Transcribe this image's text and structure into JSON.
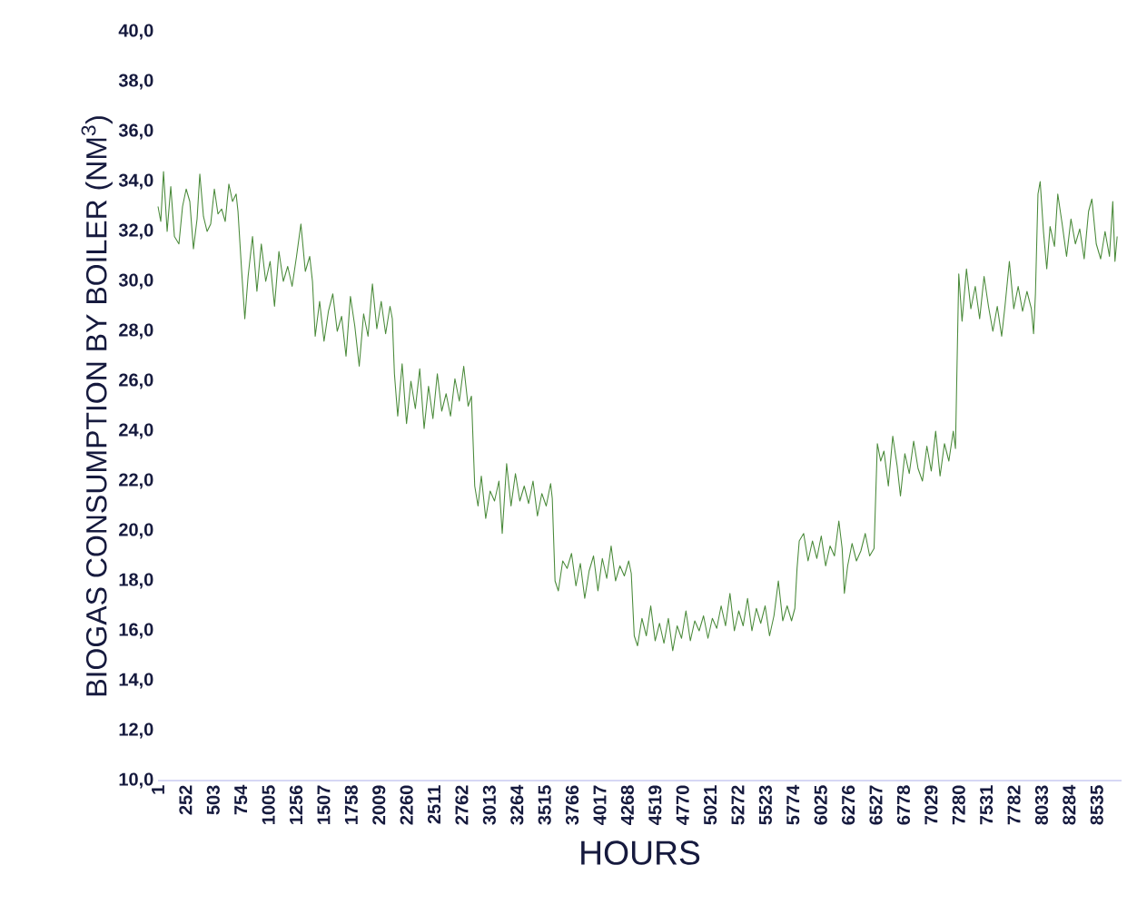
{
  "chart_data": {
    "type": "line",
    "xlabel": "HOURS",
    "ylabel": "BIOGAS CONSUMPTION BY BOILER (NM$^{3}$)",
    "xlim": [
      1,
      8760
    ],
    "ylim": [
      10,
      40
    ],
    "xticks": [
      1,
      252,
      503,
      754,
      1005,
      1256,
      1507,
      1758,
      2009,
      2260,
      2511,
      2762,
      3013,
      3264,
      3515,
      3766,
      4017,
      4268,
      4519,
      4770,
      5021,
      5272,
      5523,
      5774,
      6025,
      6276,
      6527,
      6778,
      7029,
      7280,
      7531,
      7782,
      8033,
      8284,
      8535
    ],
    "yticks": [
      {
        "value": 10,
        "label": "10,0"
      },
      {
        "value": 12,
        "label": "12,0"
      },
      {
        "value": 14,
        "label": "14,0"
      },
      {
        "value": 16,
        "label": "16,0"
      },
      {
        "value": 18,
        "label": "18,0"
      },
      {
        "value": 20,
        "label": "20,0"
      },
      {
        "value": 22,
        "label": "22,0"
      },
      {
        "value": 24,
        "label": "24,0"
      },
      {
        "value": 26,
        "label": "26,0"
      },
      {
        "value": 28,
        "label": "28,0"
      },
      {
        "value": 30,
        "label": "30,0"
      },
      {
        "value": 32,
        "label": "32,0"
      },
      {
        "value": 34,
        "label": "34,0"
      },
      {
        "value": 36,
        "label": "36,0"
      },
      {
        "value": 38,
        "label": "38,0"
      },
      {
        "value": 40,
        "label": "40,0"
      }
    ],
    "series": [
      {
        "color": "#4a8a3a",
        "x": [
          1,
          26,
          51,
          84,
          117,
          150,
          191,
          224,
          257,
          290,
          323,
          356,
          381,
          414,
          447,
          480,
          513,
          546,
          579,
          612,
          645,
          678,
          711,
          728,
          760,
          790,
          820,
          860,
          900,
          940,
          980,
          1020,
          1060,
          1100,
          1140,
          1180,
          1220,
          1260,
          1300,
          1340,
          1380,
          1405,
          1430,
          1470,
          1510,
          1550,
          1590,
          1630,
          1670,
          1710,
          1750,
          1790,
          1830,
          1870,
          1910,
          1950,
          1990,
          2030,
          2070,
          2110,
          2131,
          2150,
          2180,
          2220,
          2260,
          2300,
          2340,
          2380,
          2420,
          2460,
          2500,
          2540,
          2580,
          2620,
          2660,
          2700,
          2740,
          2780,
          2820,
          2850,
          2880,
          2910,
          2940,
          2980,
          3020,
          3060,
          3100,
          3130,
          3170,
          3210,
          3250,
          3290,
          3330,
          3370,
          3410,
          3450,
          3490,
          3530,
          3570,
          3585,
          3610,
          3640,
          3680,
          3720,
          3760,
          3800,
          3840,
          3880,
          3920,
          3960,
          4000,
          4040,
          4080,
          4120,
          4160,
          4200,
          4240,
          4280,
          4303,
          4330,
          4360,
          4400,
          4440,
          4480,
          4520,
          4560,
          4600,
          4640,
          4680,
          4720,
          4760,
          4800,
          4840,
          4880,
          4920,
          4960,
          5000,
          5040,
          5080,
          5120,
          5160,
          5200,
          5240,
          5280,
          5320,
          5360,
          5400,
          5440,
          5480,
          5520,
          5560,
          5600,
          5640,
          5680,
          5720,
          5760,
          5790,
          5810,
          5830,
          5870,
          5910,
          5950,
          5990,
          6030,
          6070,
          6110,
          6150,
          6190,
          6220,
          6240,
          6270,
          6310,
          6350,
          6390,
          6430,
          6470,
          6510,
          6540,
          6570,
          6600,
          6640,
          6680,
          6720,
          6750,
          6790,
          6830,
          6870,
          6910,
          6950,
          6990,
          7030,
          7070,
          7110,
          7150,
          7190,
          7230,
          7250,
          7280,
          7310,
          7350,
          7390,
          7430,
          7470,
          7510,
          7550,
          7590,
          7630,
          7670,
          7700,
          7740,
          7780,
          7820,
          7860,
          7900,
          7940,
          7960,
          7977,
          8000,
          8020,
          8050,
          8080,
          8110,
          8150,
          8180,
          8220,
          8260,
          8300,
          8340,
          8380,
          8420,
          8460,
          8490,
          8530,
          8570,
          8610,
          8650,
          8680,
          8700,
          8720
        ],
        "values": [
          33.0,
          32.4,
          34.4,
          32.0,
          33.8,
          31.8,
          31.5,
          33.0,
          33.7,
          33.2,
          31.3,
          32.5,
          34.3,
          32.6,
          32.0,
          32.3,
          33.7,
          32.7,
          32.9,
          32.4,
          33.9,
          33.2,
          33.5,
          32.8,
          30.5,
          28.5,
          30.2,
          31.8,
          29.6,
          31.5,
          30.0,
          30.8,
          29.0,
          31.2,
          30.0,
          30.6,
          29.8,
          31.0,
          32.3,
          30.4,
          31.0,
          30.0,
          27.8,
          29.2,
          27.6,
          28.8,
          29.5,
          28.0,
          28.6,
          27.0,
          29.4,
          28.2,
          26.6,
          28.7,
          27.8,
          29.9,
          28.1,
          29.2,
          27.9,
          29.0,
          28.5,
          26.3,
          24.6,
          26.7,
          24.3,
          26.0,
          24.9,
          26.5,
          24.1,
          25.8,
          24.5,
          26.3,
          24.8,
          25.5,
          24.6,
          26.1,
          25.2,
          26.6,
          25.0,
          25.4,
          21.8,
          21.0,
          22.2,
          20.5,
          21.6,
          21.2,
          22.0,
          19.9,
          22.7,
          21.0,
          22.3,
          21.2,
          21.8,
          21.1,
          22.0,
          20.6,
          21.5,
          21.0,
          21.9,
          21.3,
          18.0,
          17.6,
          18.8,
          18.5,
          19.1,
          17.8,
          18.7,
          17.3,
          18.4,
          19.0,
          17.6,
          18.9,
          18.1,
          19.4,
          18.0,
          18.6,
          18.2,
          18.8,
          18.3,
          15.8,
          15.4,
          16.5,
          15.8,
          17.0,
          15.6,
          16.3,
          15.5,
          16.5,
          15.2,
          16.2,
          15.7,
          16.8,
          15.6,
          16.4,
          16.0,
          16.6,
          15.7,
          16.5,
          16.1,
          17.0,
          16.2,
          17.5,
          16.0,
          16.8,
          16.2,
          17.3,
          16.0,
          16.9,
          16.3,
          17.0,
          15.8,
          16.6,
          18.0,
          16.4,
          17.0,
          16.4,
          16.9,
          18.5,
          19.6,
          19.9,
          18.8,
          19.6,
          18.9,
          19.8,
          18.6,
          19.4,
          19.0,
          20.4,
          19.3,
          17.5,
          18.6,
          19.5,
          18.8,
          19.2,
          19.9,
          19.0,
          19.3,
          23.5,
          22.8,
          23.2,
          21.8,
          23.8,
          22.6,
          21.4,
          23.1,
          22.3,
          23.6,
          22.5,
          22.0,
          23.4,
          22.4,
          24.0,
          22.2,
          23.5,
          22.8,
          24.0,
          23.3,
          30.3,
          28.4,
          30.5,
          28.9,
          29.8,
          28.5,
          30.2,
          29.0,
          28.0,
          29.0,
          27.8,
          29.0,
          30.8,
          28.9,
          29.8,
          28.8,
          29.6,
          28.9,
          27.9,
          29.5,
          33.5,
          34.0,
          32.0,
          30.5,
          32.2,
          31.4,
          33.5,
          32.3,
          31.0,
          32.5,
          31.5,
          32.1,
          30.9,
          32.8,
          33.3,
          31.5,
          30.9,
          32.0,
          31.0,
          33.2,
          30.8,
          31.8
        ]
      }
    ]
  }
}
